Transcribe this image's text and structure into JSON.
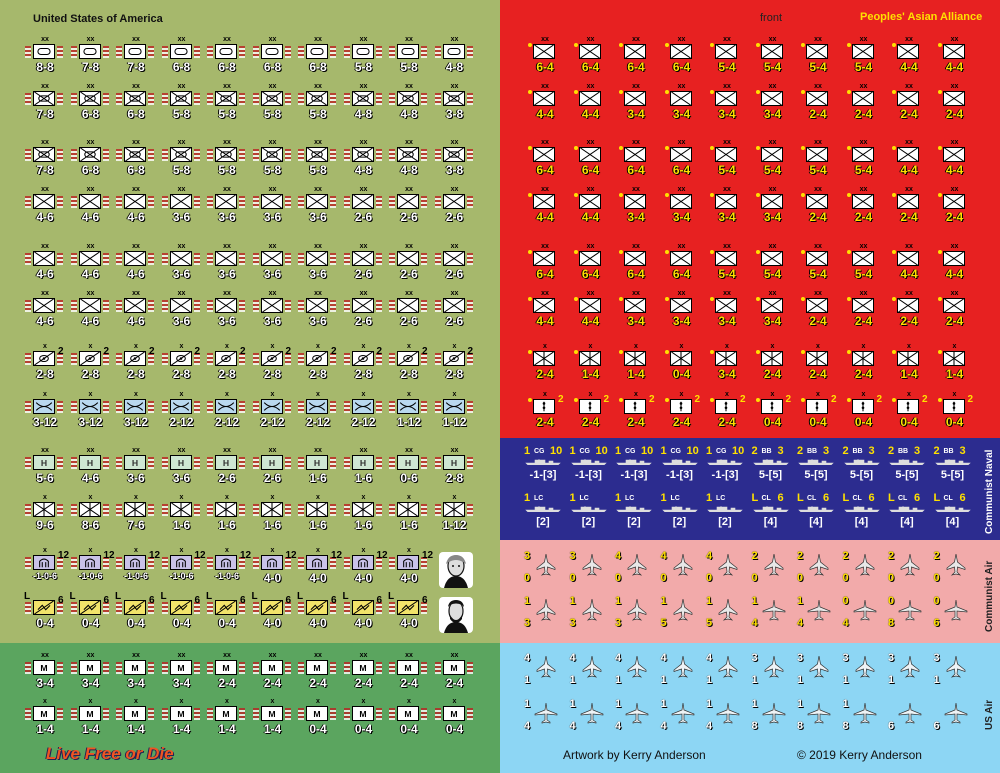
{
  "sheet": {
    "us_title": "United States of America",
    "paa_title": "Peoples' Asian Alliance",
    "front_label": "front",
    "naval_label": "Communist Naval",
    "communist_air_label": "Communist Air",
    "us_air_label": "US Air",
    "artwork_credit": "Artwork by Kerry Anderson",
    "copyright": "© 2019 Kerry Anderson",
    "motto": "Live Free or Die"
  },
  "colors": {
    "us_bg": "#a6b86c",
    "us_marine_bg": "#5ba55f",
    "paa_bg": "#e72121",
    "naval_bg": "#2c2c8f",
    "communist_air_bg": "#f2aaaa",
    "us_air_bg": "#8dd6f4"
  },
  "us_rows": [
    {
      "size": "xx",
      "type": "armor",
      "units": [
        "8-8",
        "7-8",
        "7-8",
        "6-8",
        "6-8",
        "6-8",
        "6-8",
        "5-8",
        "5-8",
        "4-8"
      ]
    },
    {
      "size": "xx",
      "type": "mech",
      "units": [
        "7-8",
        "6-8",
        "6-8",
        "5-8",
        "5-8",
        "5-8",
        "5-8",
        "4-8",
        "4-8",
        "3-8"
      ]
    },
    {
      "size": "xx",
      "type": "mech",
      "units": [
        "7-8",
        "6-8",
        "6-8",
        "5-8",
        "5-8",
        "5-8",
        "5-8",
        "4-8",
        "4-8",
        "3-8"
      ]
    },
    {
      "size": "xx",
      "type": "inf",
      "units": [
        "4-6",
        "4-6",
        "4-6",
        "3-6",
        "3-6",
        "3-6",
        "3-6",
        "2-6",
        "2-6",
        "2-6"
      ]
    },
    {
      "size": "xx",
      "type": "inf",
      "units": [
        "4-6",
        "4-6",
        "4-6",
        "3-6",
        "3-6",
        "3-6",
        "3-6",
        "2-6",
        "2-6",
        "2-6"
      ]
    },
    {
      "size": "xx",
      "type": "inf",
      "units": [
        "4-6",
        "4-6",
        "4-6",
        "3-6",
        "3-6",
        "3-6",
        "3-6",
        "2-6",
        "2-6",
        "2-6"
      ]
    },
    {
      "size": "x",
      "type": "recon",
      "sup": "2",
      "units": [
        "2-8",
        "2-8",
        "2-8",
        "2-8",
        "2-8",
        "2-8",
        "2-8",
        "2-8",
        "2-8",
        "2-8"
      ]
    },
    {
      "size": "x",
      "type": "airmobile",
      "units": [
        "3-12",
        "3-12",
        "3-12",
        "2-12",
        "2-12",
        "2-12",
        "2-12",
        "2-12",
        "1-12",
        "1-12"
      ]
    },
    {
      "size": "xx",
      "type": "misc1",
      "units": [
        "5-6",
        "4-6",
        "3-6",
        "3-6",
        "2-6",
        "2-6",
        "1-6",
        "1-6",
        "0-6",
        "2-8"
      ]
    },
    {
      "size": "x",
      "type": "misc2",
      "units": [
        "9-6",
        "8-6",
        "7-6",
        "1-6",
        "1-6",
        "1-6",
        "1-6",
        "1-6",
        "1-6",
        "1-12"
      ]
    },
    {
      "size": "x",
      "type": "arty",
      "sup": "12",
      "units": [
        "-1-0-6",
        "-1-0-6",
        "-1-0-6",
        "-1-0-6",
        "-1-0-6",
        "4-0",
        "4-0",
        "4-0",
        "4-0"
      ]
    },
    {
      "size": "L",
      "type": "logistic",
      "sup": "6",
      "units": [
        "0-4",
        "0-4",
        "0-4",
        "0-4",
        "0-4",
        "4-0",
        "4-0",
        "4-0",
        "4-0"
      ]
    }
  ],
  "us_marine_rows": [
    {
      "size": "xx",
      "type": "marine",
      "units": [
        "3-4",
        "3-4",
        "3-4",
        "3-4",
        "2-4",
        "2-4",
        "2-4",
        "2-4",
        "2-4",
        "2-4"
      ]
    },
    {
      "size": "x",
      "type": "marine",
      "units": [
        "1-4",
        "1-4",
        "1-4",
        "1-4",
        "1-4",
        "1-4",
        "0-4",
        "0-4",
        "0-4",
        "0-4"
      ]
    }
  ],
  "paa_rows": [
    {
      "size": "xx",
      "type": "inf",
      "units": [
        "6-4",
        "6-4",
        "6-4",
        "6-4",
        "5-4",
        "5-4",
        "5-4",
        "5-4",
        "4-4",
        "4-4"
      ]
    },
    {
      "size": "xx",
      "type": "inf",
      "units": [
        "4-4",
        "4-4",
        "3-4",
        "3-4",
        "3-4",
        "3-4",
        "2-4",
        "2-4",
        "2-4",
        "2-4"
      ]
    },
    {
      "size": "xx",
      "type": "inf",
      "units": [
        "6-4",
        "6-4",
        "6-4",
        "6-4",
        "5-4",
        "5-4",
        "5-4",
        "5-4",
        "4-4",
        "4-4"
      ]
    },
    {
      "size": "xx",
      "type": "inf",
      "units": [
        "4-4",
        "4-4",
        "3-4",
        "3-4",
        "3-4",
        "3-4",
        "2-4",
        "2-4",
        "2-4",
        "2-4"
      ]
    },
    {
      "size": "xx",
      "type": "inf",
      "units": [
        "6-4",
        "6-4",
        "6-4",
        "6-4",
        "5-4",
        "5-4",
        "5-4",
        "5-4",
        "4-4",
        "4-4"
      ]
    },
    {
      "size": "xx",
      "type": "inf",
      "units": [
        "4-4",
        "4-4",
        "3-4",
        "3-4",
        "3-4",
        "3-4",
        "2-4",
        "2-4",
        "2-4",
        "2-4"
      ]
    },
    {
      "size": "x",
      "type": "misc",
      "units": [
        "2-4",
        "1-4",
        "1-4",
        "0-4",
        "3-4",
        "2-4",
        "2-4",
        "2-4",
        "1-4",
        "1-4"
      ]
    },
    {
      "size": "x",
      "type": "hq",
      "units": [
        "2-4",
        "2-4",
        "2-4",
        "2-4",
        "2-4",
        "0-4",
        "0-4",
        "0-4",
        "0-4",
        "0-4"
      ]
    }
  ],
  "naval_rows": [
    {
      "units": [
        {
          "l": "1",
          "c": "CG",
          "r": "10",
          "s": "-1-[3]"
        },
        {
          "l": "1",
          "c": "CG",
          "r": "10",
          "s": "-1-[3]"
        },
        {
          "l": "1",
          "c": "CG",
          "r": "10",
          "s": "-1-[3]"
        },
        {
          "l": "1",
          "c": "CG",
          "r": "10",
          "s": "-1-[3]"
        },
        {
          "l": "1",
          "c": "CG",
          "r": "10",
          "s": "-1-[3]"
        },
        {
          "l": "2",
          "c": "BB",
          "r": "3",
          "s": "5-[5]"
        },
        {
          "l": "2",
          "c": "BB",
          "r": "3",
          "s": "5-[5]"
        },
        {
          "l": "2",
          "c": "BB",
          "r": "3",
          "s": "5-[5]"
        },
        {
          "l": "2",
          "c": "BB",
          "r": "3",
          "s": "5-[5]"
        },
        {
          "l": "2",
          "c": "BB",
          "r": "3",
          "s": "5-[5]"
        }
      ]
    },
    {
      "units": [
        {
          "l": "1",
          "c": "LC",
          "r": "",
          "s": "[2]"
        },
        {
          "l": "1",
          "c": "LC",
          "r": "",
          "s": "[2]"
        },
        {
          "l": "1",
          "c": "LC",
          "r": "",
          "s": "[2]"
        },
        {
          "l": "1",
          "c": "LC",
          "r": "",
          "s": "[2]"
        },
        {
          "l": "1",
          "c": "LC",
          "r": "",
          "s": "[2]"
        },
        {
          "l": "L",
          "c": "CL",
          "r": "6",
          "s": "[4]"
        },
        {
          "l": "L",
          "c": "CL",
          "r": "6",
          "s": "[4]"
        },
        {
          "l": "L",
          "c": "CL",
          "r": "6",
          "s": "[4]"
        },
        {
          "l": "L",
          "c": "CL",
          "r": "6",
          "s": "[4]"
        },
        {
          "l": "L",
          "c": "CL",
          "r": "6",
          "s": "[4]"
        }
      ]
    }
  ],
  "communist_air_rows": [
    [
      {
        "t": "3",
        "b": "0"
      },
      {
        "t": "3",
        "b": "0"
      },
      {
        "t": "4",
        "b": "0"
      },
      {
        "t": "4",
        "b": "0"
      },
      {
        "t": "4",
        "b": "0"
      },
      {
        "t": "2",
        "b": "0"
      },
      {
        "t": "2",
        "b": "0"
      },
      {
        "t": "2",
        "b": "0"
      },
      {
        "t": "2",
        "b": "0"
      },
      {
        "t": "2",
        "b": "0"
      }
    ],
    [
      {
        "t": "1",
        "b": "3"
      },
      {
        "t": "1",
        "b": "3"
      },
      {
        "t": "1",
        "b": "3"
      },
      {
        "t": "1",
        "b": "5"
      },
      {
        "t": "1",
        "b": "5"
      },
      {
        "t": "1",
        "b": "4"
      },
      {
        "t": "1",
        "b": "4"
      },
      {
        "t": "0",
        "b": "4"
      },
      {
        "t": "0",
        "b": "8"
      },
      {
        "t": "0",
        "b": "6"
      }
    ]
  ],
  "us_air_rows": [
    [
      {
        "t": "4",
        "b": "1"
      },
      {
        "t": "4",
        "b": "1"
      },
      {
        "t": "4",
        "b": "1"
      },
      {
        "t": "4",
        "b": "1"
      },
      {
        "t": "4",
        "b": "1"
      },
      {
        "t": "3",
        "b": "1"
      },
      {
        "t": "3",
        "b": "1"
      },
      {
        "t": "3",
        "b": "1"
      },
      {
        "t": "3",
        "b": "1"
      },
      {
        "t": "3",
        "b": "1"
      }
    ],
    [
      {
        "t": "1",
        "b": "4"
      },
      {
        "t": "1",
        "b": "4"
      },
      {
        "t": "1",
        "b": "4"
      },
      {
        "t": "1",
        "b": "4"
      },
      {
        "t": "1",
        "b": "4"
      },
      {
        "t": "1",
        "b": "8"
      },
      {
        "t": "1",
        "b": "8"
      },
      {
        "t": "1",
        "b": "8"
      },
      {
        "t": "",
        "b": "6"
      },
      {
        "t": "",
        "b": "6"
      }
    ]
  ]
}
